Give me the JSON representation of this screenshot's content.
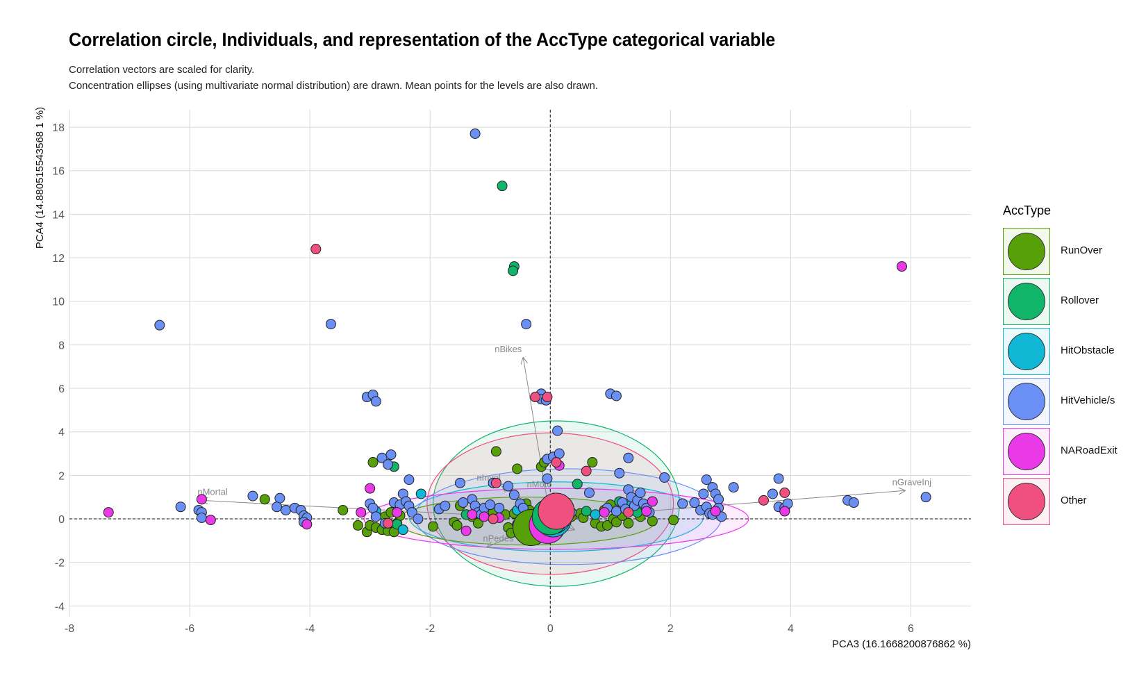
{
  "title": "Correlation circle, Individuals, and representation of the AccType categorical variable",
  "subtitle_line1": "Correlation vectors are scaled for clarity.",
  "subtitle_line2": "Concentration ellipses (using multivariate normal distribution) are drawn. Mean points for the levels are also drawn.",
  "chart_data": {
    "type": "scatter",
    "xlabel": "PCA3 (16.1668200876862 %)",
    "ylabel": "PCA4 (14.880515543568 1 %)",
    "xlim": [
      -8,
      7
    ],
    "ylim": [
      -4.5,
      18.8
    ],
    "xticks": [
      -8,
      -6,
      -4,
      -2,
      0,
      2,
      4,
      6
    ],
    "yticks": [
      -4,
      -2,
      0,
      2,
      4,
      6,
      8,
      10,
      12,
      14,
      16,
      18
    ],
    "grid": true,
    "legend_position": "right",
    "legend_title": "AccType",
    "colors": {
      "RunOver": "#57a00a",
      "Rollover": "#10b56a",
      "HitObstacle": "#10b8d6",
      "HitVehicle/s": "#6a8ff5",
      "NARoadExit": "#ea3ae8",
      "Other": "#f0507f"
    },
    "categories": [
      "RunOver",
      "Rollover",
      "HitObstacle",
      "HitVehicle/s",
      "NARoadExit",
      "Other"
    ],
    "vectors": [
      {
        "name": "nGraveInj",
        "x": 5.9,
        "y": 1.3
      },
      {
        "name": "nMortal",
        "x": -5.8,
        "y": 0.85
      },
      {
        "name": "nBikes",
        "x": -0.45,
        "y": 7.4
      },
      {
        "name": "nInvol",
        "x": -0.8,
        "y": 1.5
      },
      {
        "name": "nPedes",
        "x": -1.05,
        "y": -1.3
      },
      {
        "name": "nMoto",
        "x": 0.05,
        "y": 1.2
      },
      {
        "name": "Motor",
        "x": 0.4,
        "y": -0.5
      }
    ],
    "means": [
      {
        "name": "RunOver",
        "x": -0.32,
        "y": -0.4
      },
      {
        "name": "NARoadExit",
        "x": -0.05,
        "y": -0.3
      },
      {
        "name": "HitObstacle",
        "x": 0.05,
        "y": 0.0
      },
      {
        "name": "HitVehicle/s",
        "x": 0.05,
        "y": 0.15
      },
      {
        "name": "Rollover",
        "x": 0.0,
        "y": 0.1
      },
      {
        "name": "Other",
        "x": 0.1,
        "y": 0.35
      }
    ],
    "ellipses": [
      {
        "name": "Rollover",
        "cx": 0.1,
        "cy": 0.7,
        "rx": 2.05,
        "ry": 3.8
      },
      {
        "name": "Other",
        "cx": 0.0,
        "cy": 0.7,
        "rx": 2.05,
        "ry": 3.25
      },
      {
        "name": "HitVehicle/s",
        "cx": 0.3,
        "cy": 0.1,
        "rx": 2.55,
        "ry": 2.2
      },
      {
        "name": "HitObstacle",
        "cx": 0.1,
        "cy": 0.1,
        "rx": 2.45,
        "ry": 1.6
      },
      {
        "name": "NARoadExit",
        "cx": 0.1,
        "cy": 0.0,
        "rx": 3.2,
        "ry": 1.4
      },
      {
        "name": "RunOver",
        "cx": -0.4,
        "cy": -0.1,
        "rx": 2.15,
        "ry": 1.1
      }
    ],
    "series": [
      {
        "name": "RunOver",
        "points": [
          [
            -4.75,
            0.9
          ],
          [
            -3.45,
            0.4
          ],
          [
            -3.2,
            -0.3
          ],
          [
            -3.05,
            -0.6
          ],
          [
            -3.0,
            -0.3
          ],
          [
            -2.95,
            2.6
          ],
          [
            -2.9,
            -0.4
          ],
          [
            -2.8,
            -0.5
          ],
          [
            -2.75,
            0.1
          ],
          [
            -2.7,
            -0.55
          ],
          [
            -2.65,
            0.3
          ],
          [
            -2.6,
            -0.6
          ],
          [
            -2.55,
            -0.2
          ],
          [
            -2.5,
            0.15
          ],
          [
            -1.95,
            -0.35
          ],
          [
            -1.6,
            -0.15
          ],
          [
            -1.55,
            -0.3
          ],
          [
            -1.5,
            0.6
          ],
          [
            -1.3,
            0.1
          ],
          [
            -1.2,
            -0.2
          ],
          [
            -0.95,
            0.3
          ],
          [
            -0.9,
            3.1
          ],
          [
            -0.75,
            0.2
          ],
          [
            -0.7,
            -0.4
          ],
          [
            -0.65,
            -0.65
          ],
          [
            -0.6,
            0.25
          ],
          [
            -0.55,
            2.3
          ],
          [
            -0.45,
            0.1
          ],
          [
            -0.4,
            0.7
          ],
          [
            -0.35,
            0.4
          ],
          [
            -0.2,
            0.3
          ],
          [
            -0.15,
            2.4
          ],
          [
            -0.1,
            2.6
          ],
          [
            0.15,
            0.2
          ],
          [
            0.25,
            -0.2
          ],
          [
            0.35,
            0.1
          ],
          [
            0.5,
            0.25
          ],
          [
            0.55,
            0.05
          ],
          [
            0.7,
            2.6
          ],
          [
            0.75,
            -0.2
          ],
          [
            0.85,
            -0.35
          ],
          [
            0.9,
            0.4
          ],
          [
            0.95,
            -0.3
          ],
          [
            1.0,
            0.65
          ],
          [
            1.05,
            0.0
          ],
          [
            1.1,
            -0.15
          ],
          [
            1.2,
            0.15
          ],
          [
            1.3,
            -0.2
          ],
          [
            1.5,
            0.1
          ],
          [
            1.7,
            -0.1
          ],
          [
            2.05,
            -0.05
          ]
        ]
      },
      {
        "name": "Rollover",
        "points": [
          [
            -0.8,
            15.3
          ],
          [
            -0.6,
            11.6
          ],
          [
            -0.62,
            11.4
          ],
          [
            -2.6,
            2.4
          ],
          [
            -2.55,
            -0.25
          ],
          [
            0.45,
            1.6
          ],
          [
            1.15,
            0.8
          ],
          [
            -1.4,
            0.2
          ],
          [
            0.6,
            0.35
          ],
          [
            1.45,
            0.3
          ]
        ]
      },
      {
        "name": "HitObstacle",
        "points": [
          [
            -2.15,
            1.15
          ],
          [
            -2.9,
            0.35
          ],
          [
            -2.45,
            -0.5
          ],
          [
            -0.55,
            0.4
          ],
          [
            1.3,
            0.6
          ],
          [
            0.75,
            0.2
          ]
        ]
      },
      {
        "name": "HitVehicle/s",
        "points": [
          [
            -1.25,
            17.7
          ],
          [
            -6.5,
            8.9
          ],
          [
            -3.65,
            8.95
          ],
          [
            -0.4,
            8.95
          ],
          [
            -3.05,
            5.6
          ],
          [
            -2.95,
            5.7
          ],
          [
            -2.9,
            5.4
          ],
          [
            -0.15,
            5.75
          ],
          [
            -0.15,
            5.5
          ],
          [
            -0.07,
            5.45
          ],
          [
            1.0,
            5.75
          ],
          [
            1.1,
            5.65
          ],
          [
            0.12,
            4.05
          ],
          [
            -2.8,
            2.8
          ],
          [
            -2.65,
            2.95
          ],
          [
            -2.7,
            2.5
          ],
          [
            -0.05,
            2.75
          ],
          [
            0.05,
            2.85
          ],
          [
            0.15,
            3.0
          ],
          [
            1.3,
            2.8
          ],
          [
            -2.35,
            1.8
          ],
          [
            -0.05,
            1.85
          ],
          [
            1.15,
            2.1
          ],
          [
            1.9,
            1.9
          ],
          [
            2.6,
            1.8
          ],
          [
            2.7,
            1.45
          ],
          [
            3.05,
            1.45
          ],
          [
            3.8,
            1.85
          ],
          [
            -4.95,
            1.05
          ],
          [
            -4.5,
            0.95
          ],
          [
            -4.55,
            0.55
          ],
          [
            -4.4,
            0.4
          ],
          [
            -4.25,
            0.5
          ],
          [
            -4.15,
            0.4
          ],
          [
            -4.1,
            0.15
          ],
          [
            -4.05,
            0.05
          ],
          [
            -4.1,
            -0.15
          ],
          [
            -6.15,
            0.55
          ],
          [
            -5.85,
            0.4
          ],
          [
            -5.8,
            0.3
          ],
          [
            -5.8,
            0.05
          ],
          [
            -3.0,
            0.7
          ],
          [
            -2.95,
            0.5
          ],
          [
            -2.9,
            0.1
          ],
          [
            -2.75,
            -0.2
          ],
          [
            -2.6,
            0.75
          ],
          [
            -2.5,
            0.65
          ],
          [
            -2.45,
            1.15
          ],
          [
            -2.4,
            0.8
          ],
          [
            -2.35,
            0.6
          ],
          [
            -2.3,
            0.3
          ],
          [
            -2.2,
            0.0
          ],
          [
            -1.85,
            0.45
          ],
          [
            -1.75,
            0.6
          ],
          [
            -1.5,
            1.65
          ],
          [
            -1.45,
            0.75
          ],
          [
            -1.3,
            0.9
          ],
          [
            -1.25,
            0.6
          ],
          [
            -1.2,
            0.3
          ],
          [
            -1.15,
            0.2
          ],
          [
            -1.1,
            0.5
          ],
          [
            -1.0,
            0.65
          ],
          [
            -0.95,
            1.65
          ],
          [
            -0.85,
            0.5
          ],
          [
            -0.7,
            1.5
          ],
          [
            -0.6,
            1.1
          ],
          [
            -0.5,
            0.7
          ],
          [
            -0.45,
            0.5
          ],
          [
            0.2,
            0.9
          ],
          [
            0.3,
            0.6
          ],
          [
            0.35,
            0.3
          ],
          [
            0.65,
            1.2
          ],
          [
            0.95,
            0.5
          ],
          [
            1.1,
            0.35
          ],
          [
            1.2,
            0.75
          ],
          [
            1.25,
            0.45
          ],
          [
            1.3,
            1.35
          ],
          [
            1.35,
            1.0
          ],
          [
            1.4,
            0.6
          ],
          [
            1.45,
            0.85
          ],
          [
            1.5,
            1.2
          ],
          [
            1.55,
            0.7
          ],
          [
            1.6,
            0.5
          ],
          [
            1.65,
            0.3
          ],
          [
            2.2,
            0.7
          ],
          [
            2.4,
            0.75
          ],
          [
            2.5,
            0.4
          ],
          [
            2.55,
            1.15
          ],
          [
            2.6,
            0.55
          ],
          [
            2.65,
            0.25
          ],
          [
            2.7,
            0.2
          ],
          [
            2.75,
            1.15
          ],
          [
            2.8,
            0.9
          ],
          [
            2.8,
            0.5
          ],
          [
            2.85,
            0.1
          ],
          [
            3.7,
            1.15
          ],
          [
            3.8,
            0.55
          ],
          [
            3.9,
            0.5
          ],
          [
            3.95,
            0.7
          ],
          [
            4.95,
            0.85
          ],
          [
            5.05,
            0.75
          ],
          [
            6.25,
            1.0
          ]
        ]
      },
      {
        "name": "NARoadExit",
        "points": [
          [
            -7.35,
            0.3
          ],
          [
            -5.8,
            0.9
          ],
          [
            -5.65,
            -0.05
          ],
          [
            -4.05,
            -0.25
          ],
          [
            -3.15,
            0.3
          ],
          [
            -3.0,
            1.4
          ],
          [
            -2.55,
            0.3
          ],
          [
            -1.4,
            -0.55
          ],
          [
            -1.3,
            0.2
          ],
          [
            -1.1,
            0.1
          ],
          [
            -0.85,
            0.05
          ],
          [
            -0.55,
            -0.25
          ],
          [
            0.15,
            2.45
          ],
          [
            0.9,
            0.3
          ],
          [
            1.6,
            0.35
          ],
          [
            1.7,
            0.8
          ],
          [
            2.75,
            0.35
          ],
          [
            3.9,
            0.35
          ],
          [
            5.85,
            11.6
          ]
        ]
      },
      {
        "name": "Other",
        "points": [
          [
            -3.9,
            12.4
          ],
          [
            -0.25,
            5.6
          ],
          [
            -0.05,
            5.6
          ],
          [
            0.1,
            2.6
          ],
          [
            0.6,
            2.2
          ],
          [
            -0.9,
            1.65
          ],
          [
            -0.95,
            0.0
          ],
          [
            -2.7,
            -0.2
          ],
          [
            3.55,
            0.85
          ],
          [
            3.9,
            1.2
          ],
          [
            1.3,
            0.3
          ]
        ]
      }
    ]
  }
}
